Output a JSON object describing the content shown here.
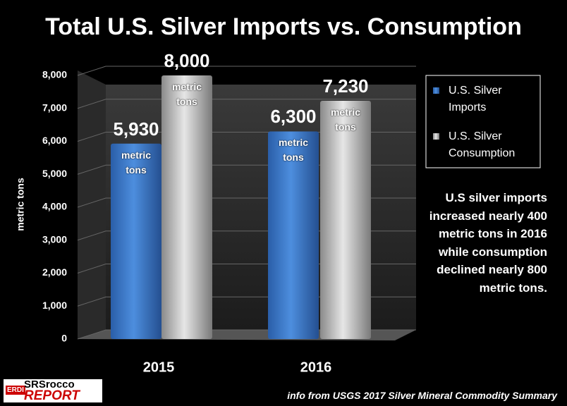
{
  "chart_data": {
    "type": "bar",
    "title": "Total U.S. Silver Imports vs. Consumption",
    "y_axis_label": "metric tons",
    "categories": [
      "2015",
      "2016"
    ],
    "series": [
      {
        "name": "U.S. Silver Imports",
        "color": "#3a78c8",
        "values": [
          5930,
          6300
        ],
        "value_labels": [
          "5,930",
          "6,300"
        ]
      },
      {
        "name": "U.S. Silver Consumption",
        "color": "#c8c8c8",
        "values": [
          8000,
          7230
        ],
        "value_labels": [
          "8,000",
          "7,230"
        ]
      }
    ],
    "bar_note": "metric tons",
    "ylim": [
      0,
      8000
    ],
    "yticks": [
      0,
      {
        "value": 1000,
        "label": "1,000"
      },
      {
        "value": 2000,
        "label": "2,000"
      },
      {
        "value": 3000,
        "label": "3,000"
      },
      {
        "value": 4000,
        "label": "4,000"
      },
      {
        "value": 5000,
        "label": "5,000"
      },
      {
        "value": 6000,
        "label": "6,000"
      },
      {
        "value": 7000,
        "label": "7,000"
      },
      {
        "value": 8000,
        "label": "8,000"
      }
    ],
    "grid": true,
    "legend": "upper right",
    "annotation": "U.S silver imports increased nearly 400 metric tons in 2016 while consumption declined nearly 800 metric tons.",
    "source": "info from USGS 2017 Silver Mineral Commodity Summary",
    "logo": [
      "ERDI",
      "SRSrocco",
      "REPORT"
    ]
  }
}
